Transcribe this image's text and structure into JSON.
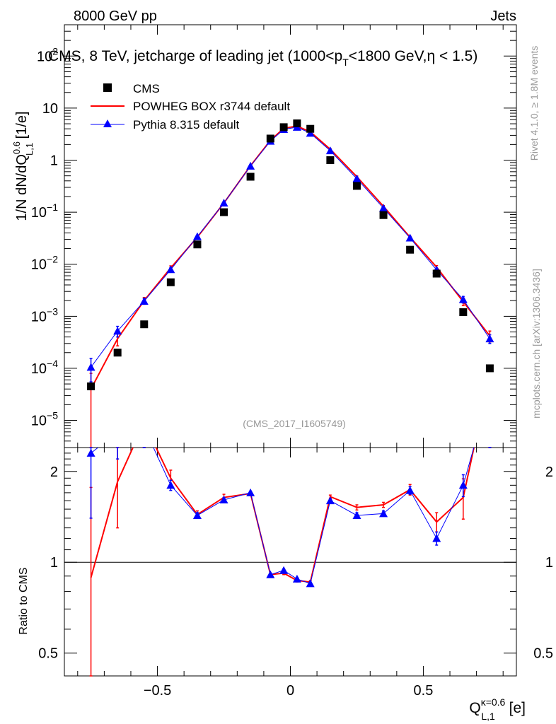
{
  "header": {
    "left": "8000 GeV pp",
    "right": "Jets"
  },
  "side_labels": {
    "rivet": "Rivet 4.1.0, ≥ 1.8M events",
    "mcplots": "mcplots.cern.ch [arXiv:1306.3436]"
  },
  "title_parts": {
    "main": "CMS, 8 TeV, jetcharge of leading jet (1000<p",
    "sub": "T",
    "rest": "<1800 GeV,η < 1.5)"
  },
  "y_label": {
    "main": "1/N dN/dQ",
    "sup": "0.6",
    "sub": "L,1",
    "unit": " [1/e]"
  },
  "ratio_ylabel": "Ratio to CMS",
  "x_label": {
    "main": "Q",
    "sup": "κ=0.6",
    "sub": "L,1",
    "unit": " [e]"
  },
  "watermark": "(CMS_2017_I1605749)",
  "legend": [
    {
      "label": "CMS",
      "color": "#000000",
      "marker": "square"
    },
    {
      "label": "POWHEG BOX r3744 default",
      "color": "#ff0000",
      "marker": "line"
    },
    {
      "label": "Pythia 8.315 default",
      "color": "#0000ff",
      "marker": "triangle"
    }
  ],
  "axis_ticks": {
    "x": [
      {
        "v": -0.5,
        "t": "−0.5"
      },
      {
        "v": 0,
        "t": "0"
      },
      {
        "v": 0.5,
        "t": "0.5"
      }
    ],
    "y_main": [
      {
        "e": 2,
        "base": "10",
        "exp": "2"
      },
      {
        "e": 1,
        "base": "10",
        "exp": ""
      },
      {
        "e": 0,
        "base": "1",
        "exp": ""
      },
      {
        "e": -1,
        "base": "10",
        "exp": "−1"
      },
      {
        "e": -2,
        "base": "10",
        "exp": "−2"
      },
      {
        "e": -3,
        "base": "10",
        "exp": "−3"
      },
      {
        "e": -4,
        "base": "10",
        "exp": "−4"
      },
      {
        "e": -5,
        "base": "10",
        "exp": "−5"
      }
    ],
    "y_ratio": [
      {
        "v": 0.5,
        "t": "0.5"
      },
      {
        "v": 1,
        "t": "1"
      },
      {
        "v": 2,
        "t": "2"
      }
    ]
  },
  "chart_data": [
    {
      "type": "scatter",
      "panel": "main",
      "xscale": "linear",
      "yscale": "log",
      "xlim": [
        -0.85,
        0.85
      ],
      "ylim": [
        3e-06,
        400
      ],
      "x": [
        -0.75,
        -0.65,
        -0.55,
        -0.45,
        -0.35,
        -0.25,
        -0.15,
        -0.075,
        -0.025,
        0.025,
        0.075,
        0.15,
        0.25,
        0.35,
        0.45,
        0.55,
        0.65,
        0.75
      ],
      "series": [
        {
          "name": "CMS",
          "color": "#000000",
          "values": [
            4.5e-05,
            0.0002,
            0.0007,
            0.0045,
            0.024,
            0.1,
            0.48,
            2.6,
            4.3,
            5.1,
            4.0,
            1.0,
            0.32,
            0.088,
            0.019,
            0.0066,
            0.0012,
            0.0001
          ]
        },
        {
          "name": "POWHEG BOX r3744 default",
          "color": "#ff0000",
          "values": [
            4e-05,
            0.00037,
            0.002,
            0.0085,
            0.033,
            0.15,
            0.78,
            2.4,
            4.1,
            4.5,
            3.5,
            1.62,
            0.48,
            0.13,
            0.033,
            0.0088,
            0.0019,
            0.00042
          ],
          "errors": [
            4e-05,
            0.0001,
            0.0003,
            0.0008,
            0.002,
            0.006,
            0.02,
            0.05,
            0.08,
            0.08,
            0.07,
            0.04,
            0.015,
            0.004,
            0.0015,
            0.0006,
            0.0003,
            0.0001
          ]
        },
        {
          "name": "Pythia 8.315 default",
          "color": "#0000ff",
          "values": [
            0.000105,
            0.00052,
            0.00195,
            0.0079,
            0.034,
            0.15,
            0.77,
            2.32,
            3.9,
            4.3,
            3.3,
            1.52,
            0.44,
            0.12,
            0.032,
            0.0078,
            0.0021,
            0.00037
          ],
          "errors": [
            5e-05,
            0.00012,
            0.00025,
            0.0007,
            0.002,
            0.006,
            0.02,
            0.05,
            0.07,
            0.07,
            0.06,
            0.04,
            0.015,
            0.004,
            0.0012,
            0.0006,
            0.0003,
            7e-05
          ]
        }
      ]
    },
    {
      "type": "line",
      "panel": "ratio",
      "xscale": "linear",
      "yscale": "log",
      "xlim": [
        -0.85,
        0.85
      ],
      "ylim": [
        0.42,
        2.4
      ],
      "reference": 1,
      "x": [
        -0.75,
        -0.65,
        -0.55,
        -0.45,
        -0.35,
        -0.25,
        -0.15,
        -0.075,
        -0.025,
        0.025,
        0.075,
        0.15,
        0.25,
        0.35,
        0.45,
        0.55,
        0.65,
        0.75
      ],
      "series": [
        {
          "name": "POWHEG BOX r3744 default",
          "color": "#ff0000",
          "values": [
            0.89,
            1.85,
            2.9,
            1.9,
            1.44,
            1.64,
            1.69,
            0.91,
            0.92,
            0.87,
            0.86,
            1.65,
            1.52,
            1.55,
            1.74,
            1.36,
            1.64,
            4.2
          ],
          "errors": [
            0.88,
            0.55,
            0.4,
            0.12,
            0.04,
            0.04,
            0.02,
            0.01,
            0.01,
            0.01,
            0.01,
            0.02,
            0.03,
            0.03,
            0.07,
            0.1,
            0.25,
            1.0
          ]
        },
        {
          "name": "Pythia 8.315 default",
          "color": "#0000ff",
          "values": [
            2.3,
            2.7,
            2.8,
            1.8,
            1.43,
            1.61,
            1.7,
            0.91,
            0.94,
            0.88,
            0.85,
            1.6,
            1.43,
            1.45,
            1.73,
            1.2,
            1.8,
            3.7
          ],
          "errors": [
            0.9,
            0.5,
            0.3,
            0.07,
            0.03,
            0.03,
            0.02,
            0.01,
            0.01,
            0.01,
            0.01,
            0.02,
            0.03,
            0.03,
            0.05,
            0.06,
            0.15,
            0.6
          ]
        }
      ]
    }
  ]
}
